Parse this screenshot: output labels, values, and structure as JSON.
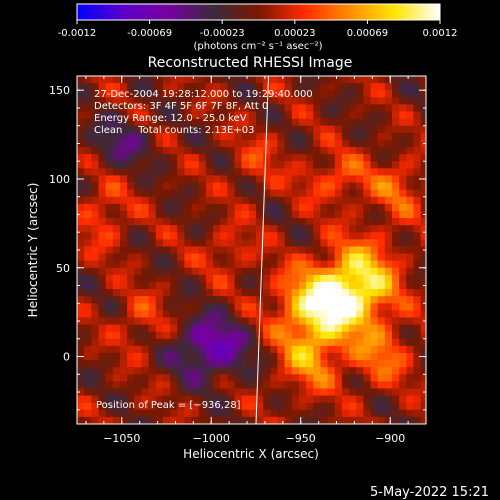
{
  "colorbar": {
    "ticks": [
      "-0.0012",
      "-0.00069",
      "-0.00023",
      "0.00023",
      "0.00069",
      "0.0012"
    ],
    "units": "(photons cm⁻² s⁻¹ asec⁻²)",
    "min": -0.0012,
    "max": 0.0012,
    "colors": [
      "#0000ff",
      "#5b00c8",
      "#7800a0",
      "#3c2a3c",
      "#7a1800",
      "#ff2a00",
      "#ff8c00",
      "#ffe600",
      "#ffffff"
    ]
  },
  "chart_data": {
    "type": "heatmap",
    "title": "Reconstructed RHESSI Image",
    "xlabel": "Heliocentric X (arcsec)",
    "ylabel": "Heliocentric Y (arcsec)",
    "xlim": [
      -1075,
      -880
    ],
    "ylim": [
      -38,
      158
    ],
    "xticks": [
      -1050,
      -1000,
      -950,
      -900
    ],
    "yticks": [
      0,
      50,
      100,
      150
    ],
    "xticklabels": [
      "−1050",
      "−1000",
      "−950",
      "−900"
    ],
    "yticklabels": [
      "0",
      "50",
      "100",
      "150"
    ],
    "annotations": [
      "27-Dec-2004 19:28:12.000 to 19:29:40.000",
      "Detectors: 3F 4F 5F 6F 7F 8F, Att 0",
      "Energy Range: 12.0 - 25.0 keV",
      "Clean     Total counts: 2.13E+03"
    ],
    "peak_label": "Position of Peak = [−936,28]",
    "peak": [
      -936,
      28
    ],
    "limb_line": {
      "x_top": -968,
      "y_top": 158,
      "x_bottom": -975,
      "y_bottom": -38
    },
    "sources": [
      {
        "x": -936,
        "y": 30,
        "sx": 18,
        "sy": 14,
        "amp": 0.0011
      },
      {
        "x": -915,
        "y": 45,
        "sx": 14,
        "sy": 16,
        "amp": 0.0007
      },
      {
        "x": -945,
        "y": 0,
        "sx": 12,
        "sy": 14,
        "amp": 0.0006
      },
      {
        "x": -905,
        "y": 0,
        "sx": 12,
        "sy": 12,
        "amp": 0.00045
      },
      {
        "x": -930,
        "y": 100,
        "sx": 14,
        "sy": 10,
        "amp": 0.0004
      },
      {
        "x": -895,
        "y": 95,
        "sx": 10,
        "sy": 12,
        "amp": 0.0004
      },
      {
        "x": -1060,
        "y": 80,
        "sx": 10,
        "sy": 14,
        "amp": 0.00035
      },
      {
        "x": -1040,
        "y": 20,
        "sx": 10,
        "sy": 12,
        "amp": 0.0003
      },
      {
        "x": -990,
        "y": 60,
        "sx": 10,
        "sy": 10,
        "amp": 0.0003
      },
      {
        "x": -1000,
        "y": 5,
        "sx": 14,
        "sy": 12,
        "amp": -0.00075
      },
      {
        "x": -1050,
        "y": 120,
        "sx": 12,
        "sy": 10,
        "amp": -0.0004
      },
      {
        "x": -975,
        "y": 110,
        "sx": 10,
        "sy": 12,
        "amp": 0.00025
      }
    ]
  },
  "footer": {
    "timestamp": "5-May-2022 15:21"
  }
}
